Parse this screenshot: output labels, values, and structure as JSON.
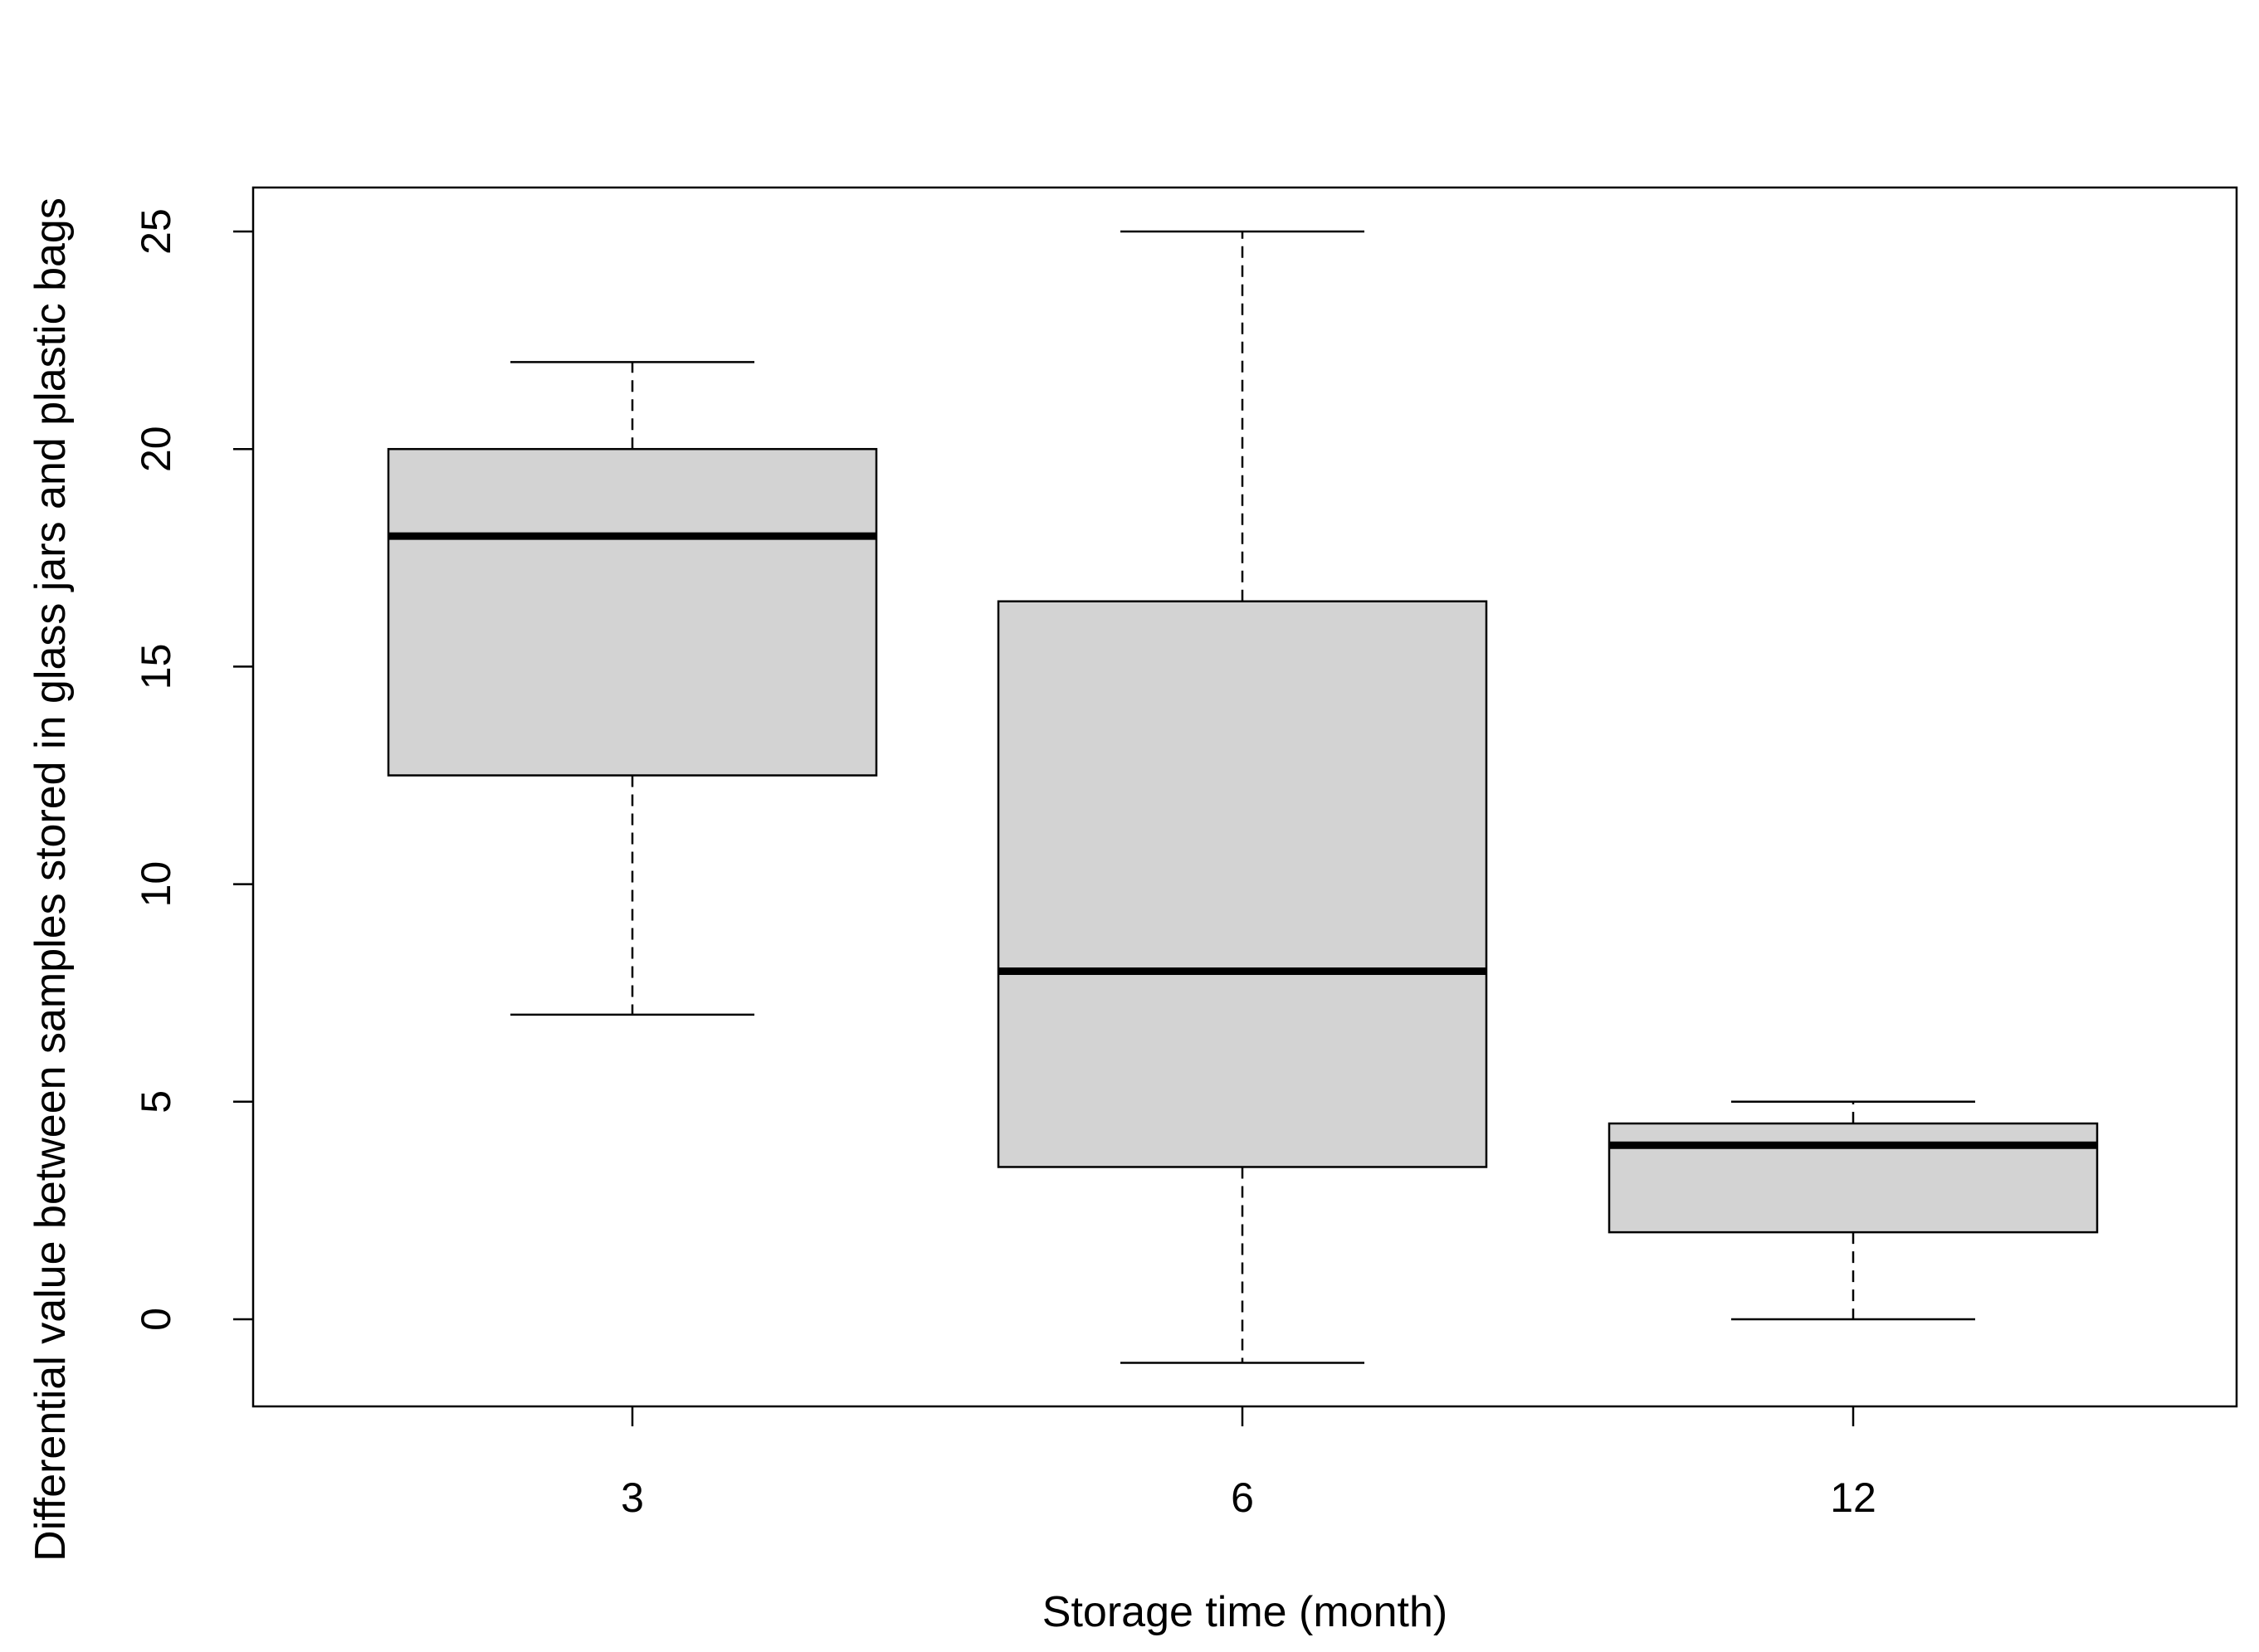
{
  "chart_data": {
    "type": "box",
    "title": "",
    "xlabel": "Storage time (month)",
    "ylabel": "Differential value between samples stored in glass jars and plastic bags",
    "ylim": [
      -2,
      26
    ],
    "yticks": [
      "0",
      "5",
      "10",
      "15",
      "20",
      "25"
    ],
    "ytick_values": [
      0,
      5,
      10,
      15,
      20,
      25
    ],
    "categories": [
      "3",
      "6",
      "12"
    ],
    "boxes": [
      {
        "category": "3",
        "whisker_low": 7,
        "q1": 12.5,
        "median": 18,
        "q3": 20,
        "whisker_high": 22
      },
      {
        "category": "6",
        "whisker_low": -1,
        "q1": 3.5,
        "median": 8,
        "q3": 16.5,
        "whisker_high": 25
      },
      {
        "category": "12",
        "whisker_low": 0,
        "q1": 2,
        "median": 4,
        "q3": 4.5,
        "whisker_high": 5
      }
    ],
    "box_fill": "#d3d3d3",
    "line_color": "#000000",
    "grid": false,
    "legend": "none"
  }
}
